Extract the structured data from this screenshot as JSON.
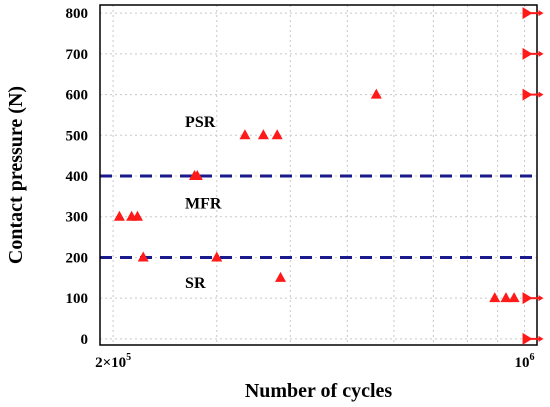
{
  "chart_data": {
    "type": "scatter",
    "xlabel": "Number of cycles",
    "ylabel": "Contact pressure (N)",
    "xscale": "log",
    "xlim": [
      190000,
      1050000
    ],
    "ylim": [
      -15,
      820
    ],
    "x_ticks": [
      {
        "value": 200000,
        "label": "2×10",
        "exp": "5"
      },
      {
        "value": 1000000,
        "label": "10",
        "exp": "6"
      }
    ],
    "x_gridlines": [
      200000,
      300000,
      400000,
      500000,
      600000,
      700000,
      800000,
      900000,
      1000000
    ],
    "y_ticks": [
      0,
      100,
      200,
      300,
      400,
      500,
      600,
      700,
      800
    ],
    "grid": true,
    "thresholds": [
      200,
      400
    ],
    "regions": [
      {
        "label": "PSR",
        "x": 265000,
        "y": 520
      },
      {
        "label": "MFR",
        "x": 265000,
        "y": 320
      },
      {
        "label": "SR",
        "x": 265000,
        "y": 125
      }
    ],
    "series": [
      {
        "marker": "triangle",
        "color": "#ff1a1a",
        "points": [
          {
            "x": 205000,
            "y": 300
          },
          {
            "x": 215000,
            "y": 300
          },
          {
            "x": 220000,
            "y": 300
          },
          {
            "x": 225000,
            "y": 200
          },
          {
            "x": 275000,
            "y": 400
          },
          {
            "x": 278000,
            "y": 400
          },
          {
            "x": 300000,
            "y": 200
          },
          {
            "x": 335000,
            "y": 500
          },
          {
            "x": 360000,
            "y": 500
          },
          {
            "x": 380000,
            "y": 500
          },
          {
            "x": 385000,
            "y": 150
          },
          {
            "x": 560000,
            "y": 600
          },
          {
            "x": 890000,
            "y": 100
          },
          {
            "x": 930000,
            "y": 100
          },
          {
            "x": 960000,
            "y": 100
          }
        ]
      },
      {
        "marker": "arrow",
        "color": "#ff1a1a",
        "points": [
          {
            "x": 1000000,
            "y": 800
          },
          {
            "x": 1000000,
            "y": 700
          },
          {
            "x": 1000000,
            "y": 600
          },
          {
            "x": 1000000,
            "y": 100
          },
          {
            "x": 1000000,
            "y": 0
          }
        ]
      }
    ]
  }
}
